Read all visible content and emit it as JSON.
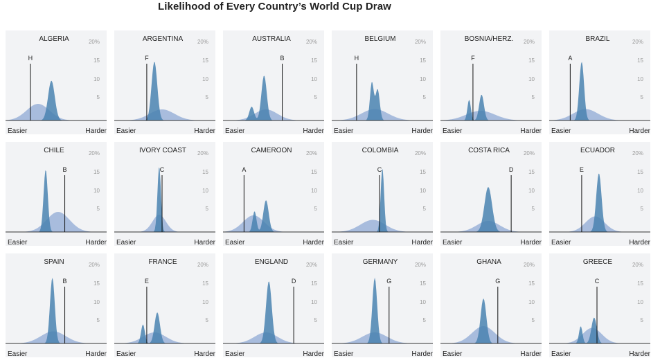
{
  "title": "Likelihood of Every Country’s World Cup Draw",
  "colors": {
    "wide": "#8faad4",
    "peak": "#4a82b0",
    "line": "#111111",
    "panel_bg": "#f2f3f5"
  },
  "chart_data": {
    "type": "area",
    "title": "Likelihood of Every Country’s World Cup Draw",
    "xlabel_left": "Easier",
    "xlabel_right": "Harder",
    "y_ticks": [
      "20%",
      "15",
      "10",
      "5"
    ],
    "ylim": [
      0,
      20
    ],
    "xlim": [
      0,
      1
    ],
    "panels": [
      {
        "country": "ALGERIA",
        "group": "H",
        "group_x": 0.26,
        "wide": [
          {
            "mu": 0.34,
            "sd": 0.12,
            "peak": 4.8
          }
        ],
        "narrow": [
          {
            "mu": 0.48,
            "sd": 0.035,
            "peak": 11.5
          }
        ]
      },
      {
        "country": "ARGENTINA",
        "group": "F",
        "group_x": 0.34,
        "wide": [
          {
            "mu": 0.5,
            "sd": 0.13,
            "peak": 3.2
          }
        ],
        "narrow": [
          {
            "mu": 0.42,
            "sd": 0.03,
            "peak": 17
          }
        ]
      },
      {
        "country": "AUSTRALIA",
        "group": "B",
        "group_x": 0.62,
        "wide": [
          {
            "mu": 0.45,
            "sd": 0.12,
            "peak": 3.2
          }
        ],
        "narrow": [
          {
            "mu": 0.3,
            "sd": 0.025,
            "peak": 4
          },
          {
            "mu": 0.43,
            "sd": 0.028,
            "peak": 13
          }
        ]
      },
      {
        "country": "BELGIUM",
        "group": "H",
        "group_x": 0.26,
        "wide": [
          {
            "mu": 0.45,
            "sd": 0.14,
            "peak": 3.3
          }
        ],
        "narrow": [
          {
            "mu": 0.42,
            "sd": 0.02,
            "peak": 11
          },
          {
            "mu": 0.48,
            "sd": 0.022,
            "peak": 9
          }
        ]
      },
      {
        "country": "BOSNIA/HERZ.",
        "group": "F",
        "group_x": 0.34,
        "wide": [
          {
            "mu": 0.42,
            "sd": 0.15,
            "peak": 2.8
          }
        ],
        "narrow": [
          {
            "mu": 0.3,
            "sd": 0.018,
            "peak": 6
          },
          {
            "mu": 0.43,
            "sd": 0.025,
            "peak": 7.5
          }
        ]
      },
      {
        "country": "BRAZIL",
        "group": "A",
        "group_x": 0.22,
        "wide": [
          {
            "mu": 0.38,
            "sd": 0.13,
            "peak": 3.3
          }
        ],
        "narrow": [
          {
            "mu": 0.34,
            "sd": 0.025,
            "peak": 17
          }
        ]
      },
      {
        "country": "CHILE",
        "group": "B",
        "group_x": 0.62,
        "wide": [
          {
            "mu": 0.55,
            "sd": 0.12,
            "peak": 5.8
          }
        ],
        "narrow": [
          {
            "mu": 0.42,
            "sd": 0.022,
            "peak": 18
          }
        ]
      },
      {
        "country": "IVORY COAST",
        "group": "C",
        "group_x": 0.5,
        "wide": [
          {
            "mu": 0.47,
            "sd": 0.07,
            "peak": 5
          }
        ],
        "narrow": [
          {
            "mu": 0.47,
            "sd": 0.018,
            "peak": 19
          }
        ]
      },
      {
        "country": "CAMEROON",
        "group": "A",
        "group_x": 0.22,
        "wide": [
          {
            "mu": 0.32,
            "sd": 0.11,
            "peak": 4.8
          }
        ],
        "narrow": [
          {
            "mu": 0.33,
            "sd": 0.02,
            "peak": 6
          },
          {
            "mu": 0.45,
            "sd": 0.028,
            "peak": 9.2
          }
        ]
      },
      {
        "country": "COLOMBIA",
        "group": "C",
        "group_x": 0.5,
        "wide": [
          {
            "mu": 0.43,
            "sd": 0.13,
            "peak": 3.5
          }
        ],
        "narrow": [
          {
            "mu": 0.53,
            "sd": 0.018,
            "peak": 18.5
          }
        ]
      },
      {
        "country": "COSTA RICA",
        "group": "D",
        "group_x": 0.74,
        "wide": [
          {
            "mu": 0.5,
            "sd": 0.12,
            "peak": 3.2
          }
        ],
        "narrow": [
          {
            "mu": 0.5,
            "sd": 0.04,
            "peak": 13
          }
        ]
      },
      {
        "country": "ECUADOR",
        "group": "E",
        "group_x": 0.34,
        "wide": [
          {
            "mu": 0.48,
            "sd": 0.1,
            "peak": 4.5
          }
        ],
        "narrow": [
          {
            "mu": 0.52,
            "sd": 0.028,
            "peak": 17
          }
        ]
      },
      {
        "country": "SPAIN",
        "group": "B",
        "group_x": 0.62,
        "wide": [
          {
            "mu": 0.5,
            "sd": 0.13,
            "peak": 3.5
          }
        ],
        "narrow": [
          {
            "mu": 0.49,
            "sd": 0.025,
            "peak": 19
          }
        ]
      },
      {
        "country": "FRANCE",
        "group": "E",
        "group_x": 0.34,
        "wide": [
          {
            "mu": 0.42,
            "sd": 0.12,
            "peak": 3.2
          }
        ],
        "narrow": [
          {
            "mu": 0.3,
            "sd": 0.02,
            "peak": 5.5
          },
          {
            "mu": 0.45,
            "sd": 0.028,
            "peak": 9
          }
        ]
      },
      {
        "country": "ENGLAND",
        "group": "D",
        "group_x": 0.74,
        "wide": [
          {
            "mu": 0.45,
            "sd": 0.12,
            "peak": 3.2
          }
        ],
        "narrow": [
          {
            "mu": 0.48,
            "sd": 0.03,
            "peak": 18
          }
        ]
      },
      {
        "country": "GERMANY",
        "group": "G",
        "group_x": 0.6,
        "wide": [
          {
            "mu": 0.45,
            "sd": 0.13,
            "peak": 3.2
          }
        ],
        "narrow": [
          {
            "mu": 0.45,
            "sd": 0.025,
            "peak": 19
          }
        ]
      },
      {
        "country": "GHANA",
        "group": "G",
        "group_x": 0.6,
        "wide": [
          {
            "mu": 0.45,
            "sd": 0.12,
            "peak": 5
          }
        ],
        "narrow": [
          {
            "mu": 0.45,
            "sd": 0.03,
            "peak": 13
          }
        ]
      },
      {
        "country": "GREECE",
        "group": "C",
        "group_x": 0.5,
        "wide": [
          {
            "mu": 0.45,
            "sd": 0.1,
            "peak": 4.5
          }
        ],
        "narrow": [
          {
            "mu": 0.33,
            "sd": 0.018,
            "peak": 5
          },
          {
            "mu": 0.47,
            "sd": 0.028,
            "peak": 7.5
          }
        ]
      }
    ]
  }
}
